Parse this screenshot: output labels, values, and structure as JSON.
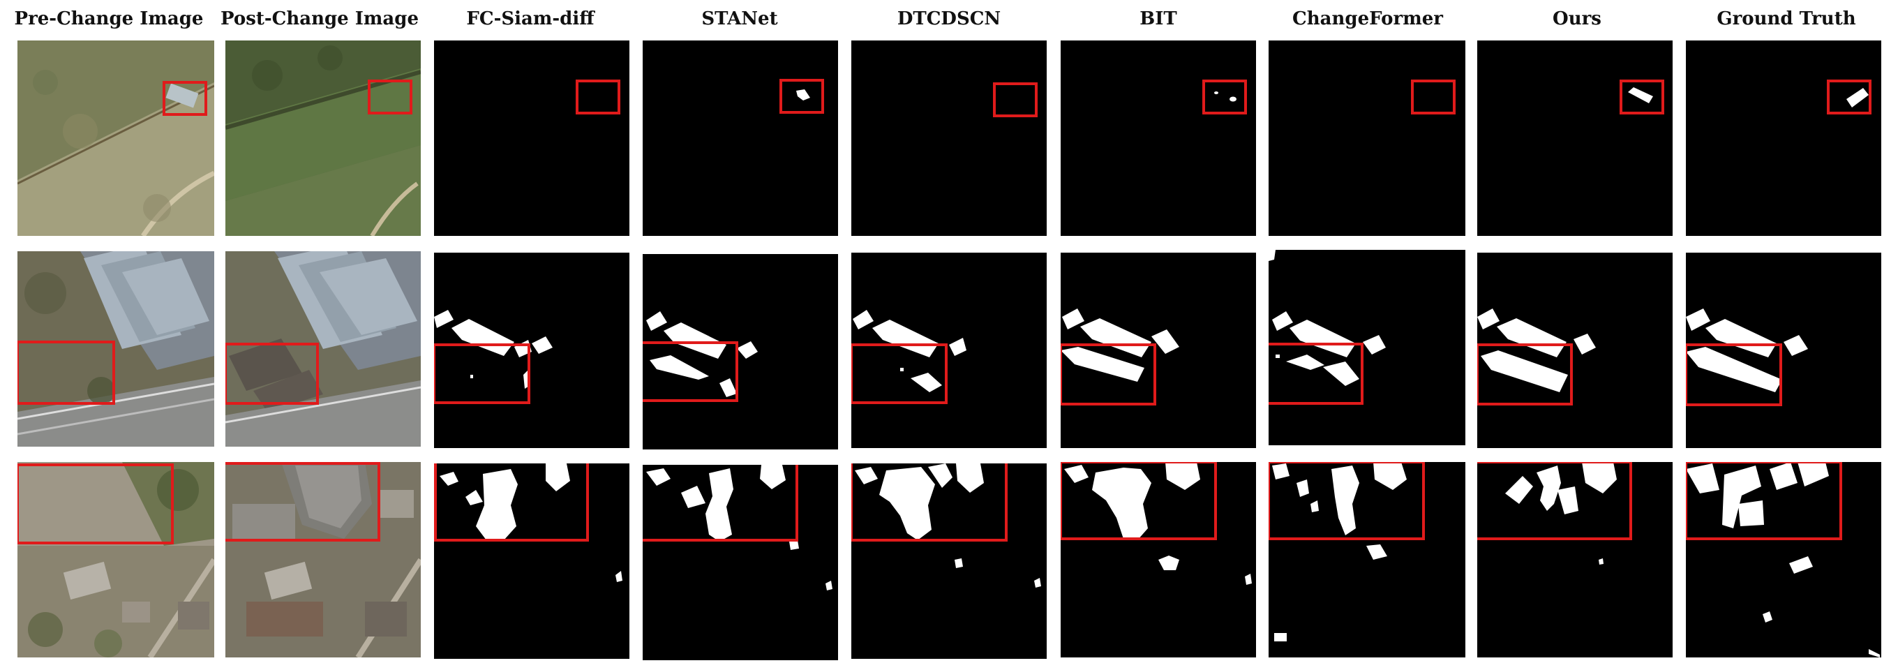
{
  "figure": {
    "columns": [
      {
        "id": "pre",
        "label": "Pre-Change Image"
      },
      {
        "id": "post",
        "label": "Post-Change Image"
      },
      {
        "id": "fc",
        "label": "FC-Siam-diff"
      },
      {
        "id": "stanet",
        "label": "STANet"
      },
      {
        "id": "dtcdscn",
        "label": "DTCDSCN"
      },
      {
        "id": "bit",
        "label": "BIT"
      },
      {
        "id": "changeformer",
        "label": "ChangeFormer"
      },
      {
        "id": "ours",
        "label": "Ours"
      },
      {
        "id": "gt",
        "label": "Ground Truth"
      }
    ],
    "rows": 3,
    "highlight_color": "#e01b1b",
    "mask_foreground": "#ffffff",
    "mask_background": "#000000"
  }
}
